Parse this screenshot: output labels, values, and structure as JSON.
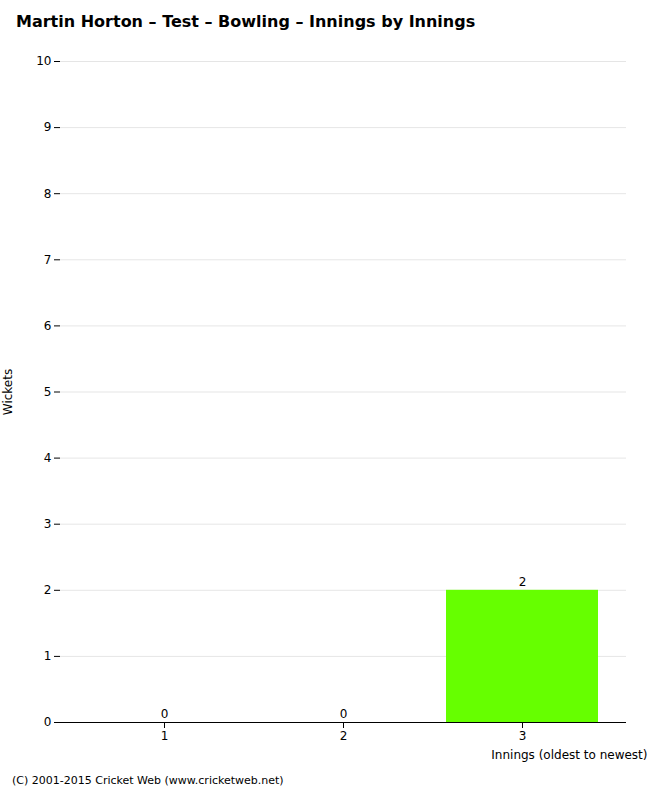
{
  "chart_data": {
    "type": "bar",
    "title": "Martin Horton – Test – Bowling – Innings by Innings",
    "xlabel": "Innings (oldest to newest)",
    "ylabel": "Wickets",
    "categories": [
      1,
      2,
      3
    ],
    "values": [
      0,
      0,
      2
    ],
    "color": "#66ff00",
    "ylim": [
      0,
      10
    ],
    "yticks": [
      0,
      1,
      2,
      3,
      4,
      5,
      6,
      7,
      8,
      9,
      10
    ],
    "grid": true,
    "data_labels": true,
    "annotations": [
      "(C) 2001-2015 Cricket Web (www.cricketweb.net)"
    ]
  }
}
